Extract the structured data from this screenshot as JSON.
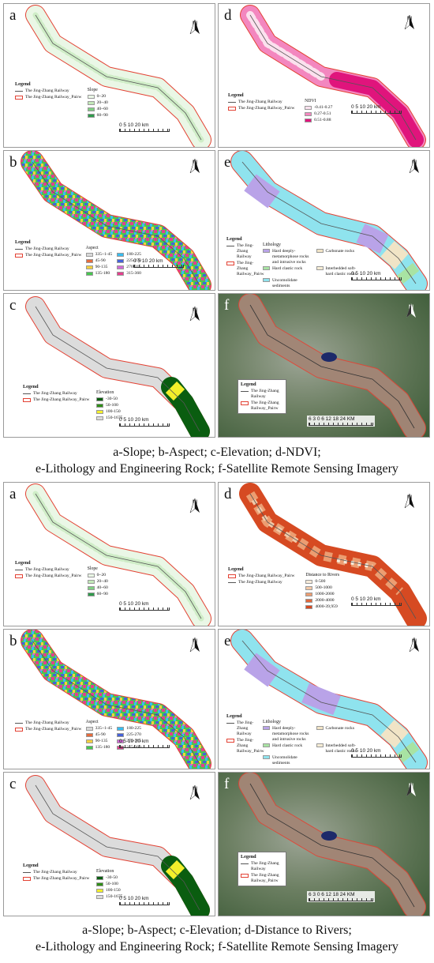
{
  "figure1": {
    "caption_line1": "a-Slope; b-Aspect; c-Elevation; d-NDVI;",
    "caption_line2": "e-Lithology and Engineering Rock; f-Satellite Remote Sensing Imagery"
  },
  "figure2": {
    "caption_line1": "a-Slope; b-Aspect; c-Elevation; d-Distance to Rivers;",
    "caption_line2": "e-Lithology and Engineering Rock; f-Satellite Remote Sensing Imagery"
  },
  "common": {
    "north_label": "N",
    "legend_title": "Legend",
    "railway_label": "The Jing-Zhang Railway",
    "buffer_label": "The Jing-Zhang Railway_Pairw",
    "scale_km": "0 5 10    20 km",
    "scale_km_sat": "6 3 0    6  12  18  24",
    "scale_km_sat_unit": "KM"
  },
  "panels": {
    "a": {
      "label": "a",
      "class_title": "Slope",
      "classes": [
        "0~20",
        "20~40",
        "40~60",
        "60~90"
      ],
      "colors": [
        "#eaf7e6",
        "#c3e8b9",
        "#7fcf82",
        "#2f9a4b"
      ]
    },
    "b": {
      "label": "b",
      "class_title": "Aspect",
      "classes": [
        "335~1-45",
        "45-90",
        "90-135",
        "135-180",
        "180-225",
        "225-270",
        "270-315",
        "315-360"
      ],
      "colors": [
        "#d9d9d9",
        "#e66b3c",
        "#f4d03f",
        "#47c750",
        "#38bdf0",
        "#4561d9",
        "#d16bd6",
        "#e43f8e"
      ]
    },
    "c": {
      "label": "c",
      "class_title": "Elevation",
      "classes": [
        "-30-50",
        "50-100",
        "100-150",
        "150-1675"
      ],
      "colors": [
        "#0a5d10",
        "#2f8e18",
        "#f3ef2b",
        "#dcdcdc"
      ]
    },
    "d1": {
      "label": "d",
      "class_title": "NDVI",
      "classes": [
        "-0.41-0.27",
        "0.27-0.51",
        "0.51-0.88"
      ],
      "colors": [
        "#fbe1ee",
        "#f387bf",
        "#e0147c"
      ]
    },
    "d2": {
      "label": "d",
      "class_title": "Distance to Rivers",
      "classes": [
        "0-500",
        "500-1000",
        "1000-2000",
        "2000-4000",
        "4000-39,959"
      ],
      "colors": [
        "#f6ead9",
        "#f3c8a6",
        "#ec9d71",
        "#e0683c",
        "#d64a22"
      ]
    },
    "e": {
      "label": "e",
      "class_title": "Lithology",
      "classes": [
        "Hard deeply-metamorphose rocks and intrusive rocks",
        "Hard clastic rock",
        "Uncomolidate sediments",
        "Carbonate rocks",
        "Interbedded soft-hard clastic rocks"
      ],
      "colors": [
        "#b9a3e8",
        "#a8e3a3",
        "#8fe3ee",
        "#f1e4c6",
        "#f5ecd4"
      ]
    },
    "f": {
      "label": "f"
    }
  }
}
